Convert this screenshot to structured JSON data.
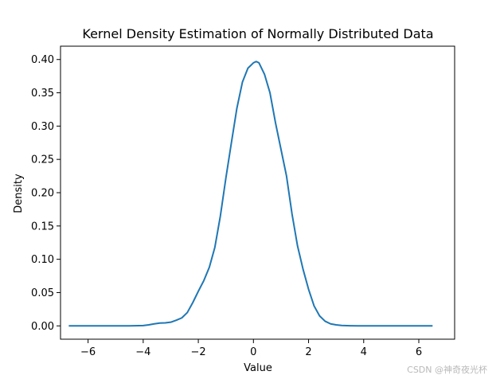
{
  "chart_data": {
    "type": "line",
    "title": "Kernel Density Estimation of Normally Distributed Data",
    "xlabel": "Value",
    "ylabel": "Density",
    "xlim": [
      -7.0,
      7.3
    ],
    "ylim": [
      -0.02,
      0.42
    ],
    "xticks": [
      -6,
      -4,
      -2,
      0,
      2,
      4,
      6
    ],
    "xtick_labels": [
      "−6",
      "−4",
      "−2",
      "0",
      "2",
      "4",
      "6"
    ],
    "yticks": [
      0.0,
      0.05,
      0.1,
      0.15,
      0.2,
      0.25,
      0.3,
      0.35,
      0.4
    ],
    "ytick_labels": [
      "0.00",
      "0.05",
      "0.10",
      "0.15",
      "0.20",
      "0.25",
      "0.30",
      "0.35",
      "0.40"
    ],
    "grid": false,
    "series": [
      {
        "color": "#1f77b4",
        "x": [
          -6.7,
          -6.0,
          -5.0,
          -4.5,
          -4.0,
          -3.8,
          -3.6,
          -3.4,
          -3.2,
          -3.0,
          -2.8,
          -2.6,
          -2.4,
          -2.2,
          -2.0,
          -1.8,
          -1.6,
          -1.4,
          -1.2,
          -1.0,
          -0.8,
          -0.6,
          -0.4,
          -0.2,
          0.0,
          0.1,
          0.2,
          0.4,
          0.6,
          0.8,
          1.0,
          1.2,
          1.4,
          1.6,
          1.8,
          2.0,
          2.2,
          2.4,
          2.6,
          2.8,
          3.0,
          3.2,
          3.5,
          3.8,
          4.0,
          4.5,
          5.0,
          6.0,
          6.5
        ],
        "y": [
          0.0,
          0.0,
          0.0,
          0.0,
          0.0005,
          0.0015,
          0.003,
          0.0042,
          0.0045,
          0.0055,
          0.0085,
          0.012,
          0.02,
          0.035,
          0.052,
          0.068,
          0.088,
          0.118,
          0.165,
          0.222,
          0.275,
          0.327,
          0.366,
          0.387,
          0.395,
          0.397,
          0.395,
          0.378,
          0.35,
          0.305,
          0.265,
          0.225,
          0.168,
          0.12,
          0.085,
          0.055,
          0.03,
          0.015,
          0.007,
          0.003,
          0.0015,
          0.0006,
          0.0002,
          0.0,
          0.0,
          0.0,
          0.0,
          0.0,
          0.0
        ]
      }
    ]
  },
  "watermark": "CSDN @神奇夜光杯"
}
